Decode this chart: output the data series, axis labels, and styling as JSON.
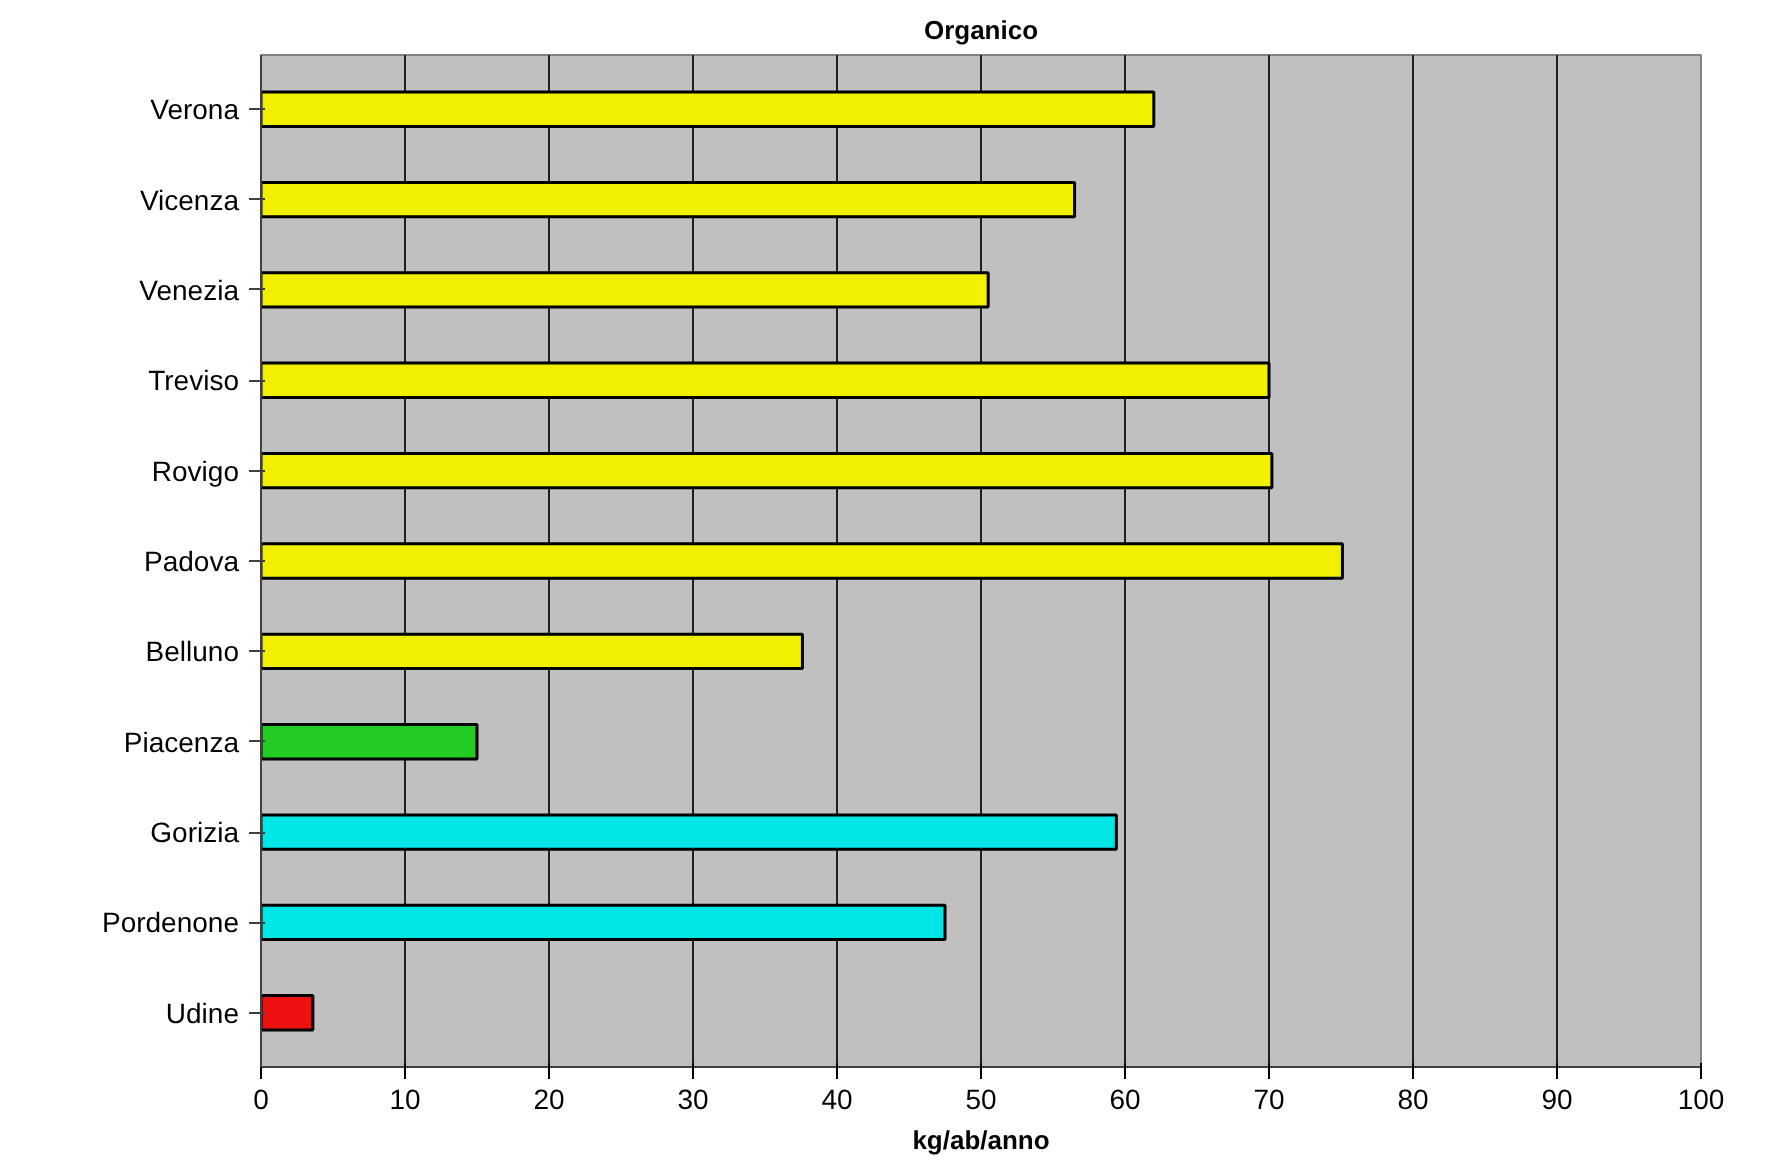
{
  "chart_data": {
    "type": "bar",
    "orientation": "horizontal",
    "title": "Organico",
    "xlabel": "kg/ab/anno",
    "categories": [
      "Verona",
      "Vicenza",
      "Venezia",
      "Treviso",
      "Rovigo",
      "Padova",
      "Belluno",
      "Piacenza",
      "Gorizia",
      "Pordenone",
      "Udine"
    ],
    "values": [
      62,
      56.5,
      50.5,
      70,
      70.2,
      75.1,
      37.6,
      15,
      59.4,
      47.5,
      3.6
    ],
    "colors": [
      "#f0f000",
      "#f0f000",
      "#f0f000",
      "#f0f000",
      "#f0f000",
      "#f0f000",
      "#f0f000",
      "#22cc22",
      "#00e5e5",
      "#00e5e5",
      "#ee1111"
    ],
    "xlim": [
      0,
      100
    ],
    "xticks": [
      0,
      10,
      20,
      30,
      40,
      50,
      60,
      70,
      80,
      90,
      100
    ],
    "grid": "x"
  }
}
